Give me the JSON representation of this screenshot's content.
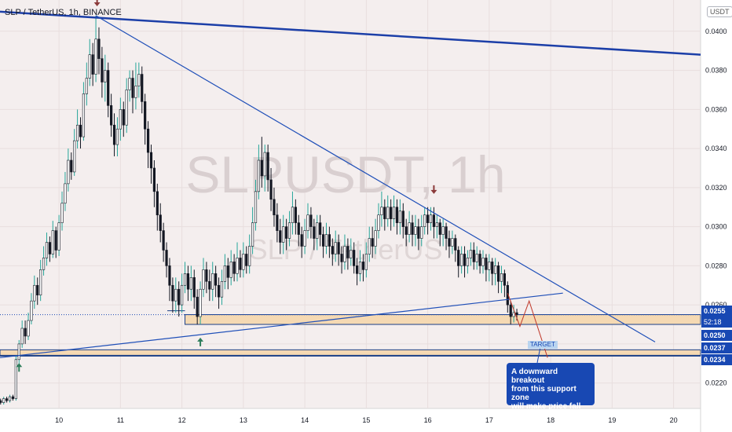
{
  "header": {
    "title": "SLP / TetherUS, 1h, BINANCE"
  },
  "watermark": {
    "symbol": "SLPUSDT, 1h",
    "name": "SLP / TetherUS"
  },
  "axis": {
    "unit": "USDT"
  },
  "annotation": {
    "callout_lines": [
      "A downward breakout",
      "from this support zone",
      "will make price fall more"
    ],
    "target": "TARGET"
  },
  "price_tags": [
    {
      "value": "0.0255",
      "sub": "52:18",
      "color": "#1848b3"
    },
    {
      "value": "0.0250",
      "color": "#1848b3"
    },
    {
      "value": "0.0237",
      "color": "#1848b3"
    },
    {
      "value": "0.0234",
      "color": "#1848b3"
    }
  ],
  "chart_data": {
    "type": "candlestick",
    "y_ticks": [
      0.022,
      0.024,
      0.026,
      0.028,
      0.03,
      0.032,
      0.034,
      0.036,
      0.038,
      0.04
    ],
    "y_tick_labels": [
      "0.0220",
      "",
      "0.0260",
      "0.0280",
      "0.0300",
      "0.0320",
      "0.0340",
      "0.0360",
      "0.0380",
      "0.0400"
    ],
    "x_ticks": [
      10,
      11,
      12,
      13,
      14,
      15,
      16,
      17,
      18,
      19,
      20
    ],
    "x_tick_labels": [
      "10",
      "11",
      "12",
      "13",
      "14",
      "15",
      "16",
      "17",
      "18",
      "19",
      "20"
    ],
    "ylim": [
      0.0207,
      0.0416
    ],
    "xlim": [
      9.04,
      20.44
    ],
    "support_zones": [
      {
        "x_start": 12.05,
        "x_end": 20.44,
        "low": 0.025,
        "high": 0.0255
      },
      {
        "x_start": 9.04,
        "x_end": 20.44,
        "low": 0.0234,
        "high": 0.0237
      }
    ],
    "trendlines": [
      {
        "name": "long-term resistance",
        "x1": 9.04,
        "y1": 0.041,
        "x2": 20.44,
        "y2": 0.0388,
        "color": "#1c3fa8",
        "width": 2.5
      },
      {
        "name": "descending resistance",
        "x1": 10.6,
        "y1": 0.0408,
        "x2": 19.7,
        "y2": 0.0241,
        "color": "#1f4fb8",
        "width": 1.2
      },
      {
        "name": "ascending support",
        "x1": 9.04,
        "y1": 0.0233,
        "x2": 18.2,
        "y2": 0.0266,
        "color": "#1f4fb8",
        "width": 1.2
      }
    ],
    "projection": [
      [
        17.3,
        0.0266
      ],
      [
        17.5,
        0.0249
      ],
      [
        17.65,
        0.0262
      ],
      [
        17.95,
        0.0233
      ]
    ],
    "arrows": [
      {
        "dir": "down",
        "x": 10.62,
        "y": 0.0414
      },
      {
        "dir": "down",
        "x": 16.1,
        "y": 0.0318
      },
      {
        "dir": "up",
        "x": 12.3,
        "y": 0.0242
      },
      {
        "dir": "up",
        "x": 9.35,
        "y": 0.0229
      }
    ],
    "candles": [
      [
        9.05,
        0.0211,
        0.021,
        0.0212,
        0.0209
      ],
      [
        9.1,
        0.021,
        0.0212,
        0.0213,
        0.0209
      ],
      [
        9.15,
        0.0212,
        0.0211,
        0.0213,
        0.021
      ],
      [
        9.2,
        0.0211,
        0.0213,
        0.0214,
        0.021
      ],
      [
        9.25,
        0.0213,
        0.0212,
        0.0214,
        0.0211
      ],
      [
        9.3,
        0.0212,
        0.0232,
        0.0234,
        0.0211
      ],
      [
        9.35,
        0.0232,
        0.024,
        0.0242,
        0.023
      ],
      [
        9.4,
        0.024,
        0.0248,
        0.0252,
        0.0238
      ],
      [
        9.45,
        0.0248,
        0.0244,
        0.0252,
        0.024
      ],
      [
        9.5,
        0.0244,
        0.0252,
        0.0256,
        0.0242
      ],
      [
        9.55,
        0.0252,
        0.0262,
        0.0266,
        0.025
      ],
      [
        9.6,
        0.0262,
        0.027,
        0.0275,
        0.0258
      ],
      [
        9.65,
        0.027,
        0.0265,
        0.0274,
        0.026
      ],
      [
        9.7,
        0.0265,
        0.0278,
        0.0283,
        0.0262
      ],
      [
        9.75,
        0.0278,
        0.0284,
        0.029,
        0.0275
      ],
      [
        9.8,
        0.0284,
        0.0292,
        0.0297,
        0.028
      ],
      [
        9.85,
        0.0292,
        0.0286,
        0.0295,
        0.0282
      ],
      [
        9.9,
        0.0286,
        0.0298,
        0.0303,
        0.0284
      ],
      [
        9.95,
        0.0298,
        0.0288,
        0.03,
        0.0284
      ],
      [
        10.0,
        0.0288,
        0.0302,
        0.0306,
        0.0285
      ],
      [
        10.05,
        0.0302,
        0.0312,
        0.0318,
        0.0298
      ],
      [
        10.1,
        0.0312,
        0.0322,
        0.0328,
        0.0308
      ],
      [
        10.15,
        0.0322,
        0.0334,
        0.034,
        0.0318
      ],
      [
        10.2,
        0.0334,
        0.0328,
        0.0338,
        0.0324
      ],
      [
        10.25,
        0.0328,
        0.0344,
        0.035,
        0.0326
      ],
      [
        10.3,
        0.0344,
        0.0352,
        0.036,
        0.034
      ],
      [
        10.35,
        0.0352,
        0.0346,
        0.0356,
        0.034
      ],
      [
        10.4,
        0.0346,
        0.0368,
        0.0374,
        0.0344
      ],
      [
        10.45,
        0.0368,
        0.0376,
        0.0384,
        0.0362
      ],
      [
        10.5,
        0.0376,
        0.0388,
        0.0396,
        0.0372
      ],
      [
        10.55,
        0.0388,
        0.0378,
        0.0394,
        0.0372
      ],
      [
        10.6,
        0.0378,
        0.0396,
        0.0408,
        0.0374
      ],
      [
        10.65,
        0.0396,
        0.0386,
        0.0402,
        0.0378
      ],
      [
        10.7,
        0.0386,
        0.0374,
        0.0392,
        0.0366
      ],
      [
        10.75,
        0.0374,
        0.038,
        0.0388,
        0.0364
      ],
      [
        10.8,
        0.038,
        0.0362,
        0.0384,
        0.0356
      ],
      [
        10.85,
        0.0362,
        0.0352,
        0.0368,
        0.0346
      ],
      [
        10.9,
        0.0352,
        0.0342,
        0.0358,
        0.0336
      ],
      [
        10.95,
        0.0342,
        0.035,
        0.0356,
        0.0336
      ],
      [
        11.0,
        0.035,
        0.036,
        0.0366,
        0.0344
      ],
      [
        11.05,
        0.036,
        0.0352,
        0.0364,
        0.0346
      ],
      [
        11.1,
        0.0352,
        0.037,
        0.0376,
        0.0348
      ],
      [
        11.15,
        0.037,
        0.0376,
        0.038,
        0.0364
      ],
      [
        11.2,
        0.0376,
        0.0366,
        0.038,
        0.0358
      ],
      [
        11.25,
        0.0366,
        0.0372,
        0.0384,
        0.036
      ],
      [
        11.3,
        0.0372,
        0.0378,
        0.0384,
        0.0366
      ],
      [
        11.35,
        0.0378,
        0.0364,
        0.0382,
        0.0358
      ],
      [
        11.4,
        0.0364,
        0.035,
        0.0368,
        0.0342
      ],
      [
        11.45,
        0.035,
        0.0338,
        0.0354,
        0.033
      ],
      [
        11.5,
        0.0338,
        0.033,
        0.0342,
        0.0322
      ],
      [
        11.55,
        0.033,
        0.0318,
        0.0334,
        0.031
      ],
      [
        11.6,
        0.0318,
        0.0306,
        0.0322,
        0.0298
      ],
      [
        11.65,
        0.0306,
        0.0298,
        0.0312,
        0.0292
      ],
      [
        11.7,
        0.0298,
        0.0288,
        0.0302,
        0.0282
      ],
      [
        11.75,
        0.0288,
        0.028,
        0.0292,
        0.0274
      ],
      [
        11.8,
        0.028,
        0.027,
        0.0284,
        0.0262
      ],
      [
        11.85,
        0.027,
        0.0262,
        0.0274,
        0.0256
      ],
      [
        11.9,
        0.0262,
        0.0268,
        0.0274,
        0.0256
      ],
      [
        11.95,
        0.0268,
        0.026,
        0.0272,
        0.0254
      ],
      [
        12.0,
        0.026,
        0.027,
        0.0276,
        0.0256
      ],
      [
        12.05,
        0.027,
        0.0276,
        0.0282,
        0.0266
      ],
      [
        12.1,
        0.0276,
        0.0268,
        0.028,
        0.0262
      ],
      [
        12.15,
        0.0268,
        0.0274,
        0.028,
        0.0262
      ],
      [
        12.2,
        0.0274,
        0.0264,
        0.0278,
        0.0258
      ],
      [
        12.25,
        0.0264,
        0.0254,
        0.0268,
        0.025
      ],
      [
        12.3,
        0.0254,
        0.0268,
        0.0272,
        0.025
      ],
      [
        12.35,
        0.0268,
        0.0278,
        0.0284,
        0.0264
      ],
      [
        12.4,
        0.0278,
        0.0272,
        0.0282,
        0.0266
      ],
      [
        12.45,
        0.0272,
        0.0268,
        0.0278,
        0.0262
      ],
      [
        12.5,
        0.0268,
        0.0276,
        0.0282,
        0.0262
      ],
      [
        12.55,
        0.0276,
        0.027,
        0.028,
        0.0264
      ],
      [
        12.6,
        0.027,
        0.0264,
        0.0274,
        0.0258
      ],
      [
        12.65,
        0.0264,
        0.0272,
        0.0278,
        0.026
      ],
      [
        12.7,
        0.0272,
        0.028,
        0.0286,
        0.0268
      ],
      [
        12.75,
        0.028,
        0.0274,
        0.0284,
        0.0268
      ],
      [
        12.8,
        0.0274,
        0.0282,
        0.0288,
        0.027
      ],
      [
        12.85,
        0.0282,
        0.0276,
        0.0286,
        0.0272
      ],
      [
        12.9,
        0.0276,
        0.0284,
        0.0292,
        0.0272
      ],
      [
        12.95,
        0.0284,
        0.0278,
        0.0288,
        0.0274
      ],
      [
        13.0,
        0.0278,
        0.0286,
        0.0292,
        0.0274
      ],
      [
        13.05,
        0.0286,
        0.028,
        0.029,
        0.0276
      ],
      [
        13.1,
        0.028,
        0.029,
        0.0296,
        0.0276
      ],
      [
        13.15,
        0.029,
        0.0302,
        0.031,
        0.0286
      ],
      [
        13.2,
        0.0302,
        0.0318,
        0.0324,
        0.0298
      ],
      [
        13.25,
        0.0318,
        0.0334,
        0.0342,
        0.0314
      ],
      [
        13.3,
        0.0334,
        0.0326,
        0.0346,
        0.032
      ],
      [
        13.35,
        0.0326,
        0.0338,
        0.0342,
        0.0318
      ],
      [
        13.4,
        0.0338,
        0.0324,
        0.0342,
        0.0318
      ],
      [
        13.45,
        0.0324,
        0.0314,
        0.033,
        0.0308
      ],
      [
        13.5,
        0.0314,
        0.0306,
        0.032,
        0.03
      ],
      [
        13.55,
        0.0306,
        0.0298,
        0.0312,
        0.0292
      ],
      [
        13.6,
        0.0298,
        0.0292,
        0.0304,
        0.0286
      ],
      [
        13.65,
        0.0292,
        0.03,
        0.0306,
        0.0286
      ],
      [
        13.7,
        0.03,
        0.0294,
        0.0304,
        0.0288
      ],
      [
        13.75,
        0.0294,
        0.0302,
        0.0308,
        0.029
      ],
      [
        13.8,
        0.0302,
        0.031,
        0.0318,
        0.0296
      ],
      [
        13.85,
        0.031,
        0.0302,
        0.0314,
        0.0296
      ],
      [
        13.9,
        0.0302,
        0.0296,
        0.0306,
        0.029
      ],
      [
        13.95,
        0.0296,
        0.029,
        0.03,
        0.0284
      ],
      [
        14.0,
        0.029,
        0.0298,
        0.0304,
        0.0286
      ],
      [
        14.05,
        0.0298,
        0.0306,
        0.0312,
        0.0294
      ],
      [
        14.1,
        0.0306,
        0.03,
        0.031,
        0.0294
      ],
      [
        14.15,
        0.03,
        0.0294,
        0.0304,
        0.0288
      ],
      [
        14.2,
        0.0294,
        0.0302,
        0.0306,
        0.0288
      ],
      [
        14.25,
        0.0302,
        0.0296,
        0.0306,
        0.029
      ],
      [
        14.3,
        0.0296,
        0.029,
        0.03,
        0.0284
      ],
      [
        14.35,
        0.029,
        0.0296,
        0.0302,
        0.0286
      ],
      [
        14.4,
        0.0296,
        0.029,
        0.03,
        0.0284
      ],
      [
        14.45,
        0.029,
        0.0286,
        0.0294,
        0.028
      ],
      [
        14.5,
        0.0286,
        0.0292,
        0.0298,
        0.0282
      ],
      [
        14.55,
        0.0292,
        0.0286,
        0.0296,
        0.028
      ],
      [
        14.6,
        0.0286,
        0.0282,
        0.029,
        0.0276
      ],
      [
        14.65,
        0.0282,
        0.029,
        0.0296,
        0.0278
      ],
      [
        14.7,
        0.029,
        0.0284,
        0.0294,
        0.0278
      ],
      [
        14.75,
        0.0284,
        0.0288,
        0.0294,
        0.028
      ],
      [
        14.8,
        0.0288,
        0.028,
        0.0292,
        0.0276
      ],
      [
        14.85,
        0.028,
        0.0276,
        0.0284,
        0.027
      ],
      [
        14.9,
        0.0276,
        0.0282,
        0.0288,
        0.0272
      ],
      [
        14.95,
        0.0282,
        0.0278,
        0.0286,
        0.0272
      ],
      [
        15.0,
        0.0278,
        0.0286,
        0.0292,
        0.0274
      ],
      [
        15.05,
        0.0286,
        0.0294,
        0.03,
        0.0282
      ],
      [
        15.1,
        0.0294,
        0.029,
        0.03,
        0.0284
      ],
      [
        15.15,
        0.029,
        0.0298,
        0.0304,
        0.0286
      ],
      [
        15.2,
        0.0298,
        0.0306,
        0.0312,
        0.0294
      ],
      [
        15.25,
        0.0306,
        0.031,
        0.0318,
        0.03
      ],
      [
        15.3,
        0.031,
        0.0304,
        0.0314,
        0.0298
      ],
      [
        15.35,
        0.0304,
        0.031,
        0.0316,
        0.03
      ],
      [
        15.4,
        0.031,
        0.0304,
        0.0314,
        0.0298
      ],
      [
        15.45,
        0.0304,
        0.031,
        0.0316,
        0.03
      ],
      [
        15.5,
        0.031,
        0.0302,
        0.0314,
        0.0296
      ],
      [
        15.55,
        0.0302,
        0.0308,
        0.0314,
        0.0296
      ],
      [
        15.6,
        0.0308,
        0.03,
        0.0312,
        0.0294
      ],
      [
        15.65,
        0.03,
        0.0296,
        0.0304,
        0.029
      ],
      [
        15.7,
        0.0296,
        0.0302,
        0.0308,
        0.0292
      ],
      [
        15.75,
        0.0302,
        0.0296,
        0.0306,
        0.029
      ],
      [
        15.8,
        0.0296,
        0.03,
        0.0306,
        0.029
      ],
      [
        15.85,
        0.03,
        0.0294,
        0.0304,
        0.0288
      ],
      [
        15.9,
        0.0294,
        0.03,
        0.0306,
        0.029
      ],
      [
        15.95,
        0.03,
        0.0306,
        0.031,
        0.0296
      ],
      [
        16.0,
        0.0306,
        0.0302,
        0.031,
        0.0296
      ],
      [
        16.05,
        0.0302,
        0.0306,
        0.031,
        0.0298
      ],
      [
        16.1,
        0.0306,
        0.03,
        0.031,
        0.0294
      ],
      [
        16.15,
        0.03,
        0.0302,
        0.0306,
        0.0294
      ],
      [
        16.2,
        0.0302,
        0.0296,
        0.0304,
        0.029
      ],
      [
        16.25,
        0.0296,
        0.03,
        0.0304,
        0.029
      ],
      [
        16.3,
        0.03,
        0.0294,
        0.0302,
        0.0288
      ],
      [
        16.35,
        0.0294,
        0.029,
        0.0298,
        0.0284
      ],
      [
        16.4,
        0.029,
        0.0294,
        0.0298,
        0.0286
      ],
      [
        16.45,
        0.0294,
        0.0288,
        0.0296,
        0.0282
      ],
      [
        16.5,
        0.0288,
        0.028,
        0.029,
        0.0274
      ],
      [
        16.55,
        0.028,
        0.0286,
        0.029,
        0.0276
      ],
      [
        16.6,
        0.0286,
        0.028,
        0.029,
        0.0274
      ],
      [
        16.65,
        0.028,
        0.0284,
        0.0288,
        0.0276
      ],
      [
        16.7,
        0.0284,
        0.0288,
        0.0292,
        0.028
      ],
      [
        16.75,
        0.0288,
        0.0282,
        0.0292,
        0.0278
      ],
      [
        16.8,
        0.0282,
        0.0286,
        0.029,
        0.0278
      ],
      [
        16.85,
        0.0286,
        0.028,
        0.0288,
        0.0276
      ],
      [
        16.9,
        0.028,
        0.0284,
        0.0288,
        0.0276
      ],
      [
        16.95,
        0.0284,
        0.0278,
        0.0286,
        0.0272
      ],
      [
        17.0,
        0.0278,
        0.0282,
        0.0286,
        0.0272
      ],
      [
        17.05,
        0.0282,
        0.0276,
        0.0284,
        0.027
      ],
      [
        17.1,
        0.0276,
        0.028,
        0.0284,
        0.027
      ],
      [
        17.15,
        0.028,
        0.0272,
        0.0282,
        0.0266
      ],
      [
        17.2,
        0.0272,
        0.0276,
        0.028,
        0.0266
      ],
      [
        17.25,
        0.0276,
        0.027,
        0.0278,
        0.0264
      ],
      [
        17.3,
        0.027,
        0.026,
        0.0272,
        0.0256
      ],
      [
        17.35,
        0.026,
        0.0254,
        0.0262,
        0.025
      ],
      [
        17.4,
        0.0254,
        0.0256,
        0.026,
        0.0251
      ],
      [
        17.45,
        0.0256,
        0.0255,
        0.0258,
        0.0252
      ]
    ]
  }
}
